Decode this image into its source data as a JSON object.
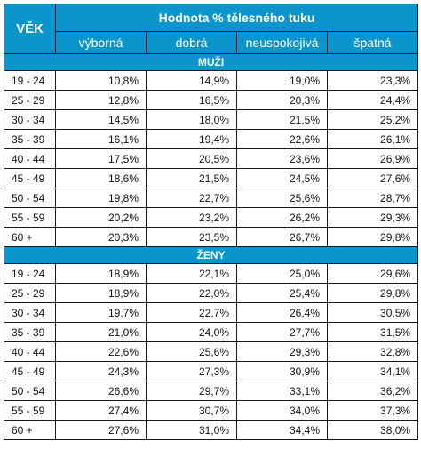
{
  "header": {
    "age_label": "VĚK",
    "title": "Hodnota % tělesného tuku",
    "columns": [
      "výborná",
      "dobrá",
      "neuspokojivá",
      "špatná"
    ]
  },
  "sections": [
    {
      "label": "MUŽI",
      "rows": [
        {
          "age": "19 - 24",
          "values": [
            "10,8%",
            "14,9%",
            "19,0%",
            "23,3%"
          ]
        },
        {
          "age": "25 - 29",
          "values": [
            "12,8%",
            "16,5%",
            "20,3%",
            "24,4%"
          ]
        },
        {
          "age": "30 - 34",
          "values": [
            "14,5%",
            "18,0%",
            "21,5%",
            "25,2%"
          ]
        },
        {
          "age": "35 - 39",
          "values": [
            "16,1%",
            "19,4%",
            "22,6%",
            "26,1%"
          ]
        },
        {
          "age": "40 - 44",
          "values": [
            "17,5%",
            "20,5%",
            "23,6%",
            "26,9%"
          ]
        },
        {
          "age": "45 - 49",
          "values": [
            "18,6%",
            "21,5%",
            "24,5%",
            "27,6%"
          ]
        },
        {
          "age": "50 - 54",
          "values": [
            "19,8%",
            "22,7%",
            "25,6%",
            "28,7%"
          ]
        },
        {
          "age": "55 - 59",
          "values": [
            "20,2%",
            "23,2%",
            "26,2%",
            "29,3%"
          ]
        },
        {
          "age": "60 +",
          "values": [
            "20,3%",
            "23,5%",
            "26,7%",
            "29,8%"
          ]
        }
      ]
    },
    {
      "label": "ŽENY",
      "rows": [
        {
          "age": "19 - 24",
          "values": [
            "18,9%",
            "22,1%",
            "25,0%",
            "29,6%"
          ]
        },
        {
          "age": "25 - 29",
          "values": [
            "18,9%",
            "22,0%",
            "25,4%",
            "29,8%"
          ]
        },
        {
          "age": "30 - 34",
          "values": [
            "19,7%",
            "22,7%",
            "26,4%",
            "30,5%"
          ]
        },
        {
          "age": "35 - 39",
          "values": [
            "21,0%",
            "24,0%",
            "27,7%",
            "31,5%"
          ]
        },
        {
          "age": "40 - 44",
          "values": [
            "22,6%",
            "25,6%",
            "29,3%",
            "32,8%"
          ]
        },
        {
          "age": "45 - 49",
          "values": [
            "24,3%",
            "27,3%",
            "30,9%",
            "34,1%"
          ]
        },
        {
          "age": "50 - 54",
          "values": [
            "26,6%",
            "29,7%",
            "33,1%",
            "36,2%"
          ]
        },
        {
          "age": "55 - 59",
          "values": [
            "27,4%",
            "30,7%",
            "34,0%",
            "37,3%"
          ]
        },
        {
          "age": "60 +",
          "values": [
            "27,6%",
            "31,0%",
            "34,4%",
            "38,0%"
          ]
        }
      ]
    }
  ],
  "colors": {
    "header_bg": "#0a96cc",
    "header_text": "#ffffff",
    "border": "#1a1a1a"
  }
}
